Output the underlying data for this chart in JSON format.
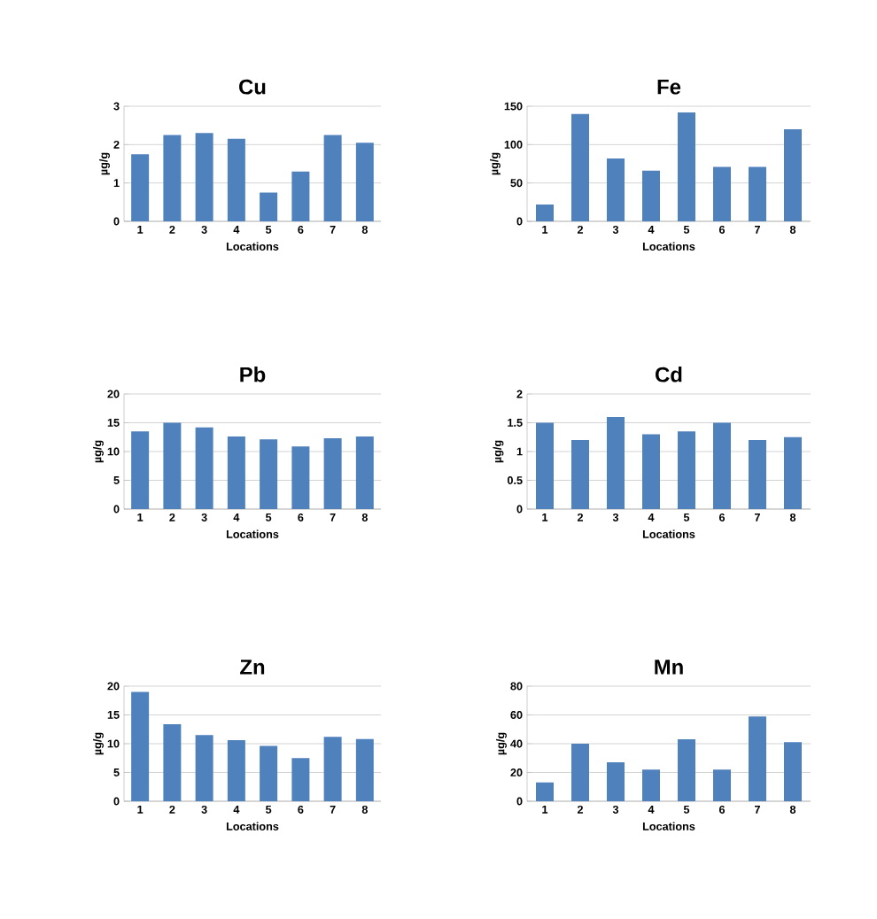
{
  "chart_data": [
    {
      "type": "bar",
      "title": "Cu",
      "xlabel": "Locations",
      "ylabel": "µg/g",
      "categories": [
        "1",
        "2",
        "3",
        "4",
        "5",
        "6",
        "7",
        "8"
      ],
      "values": [
        1.75,
        2.25,
        2.3,
        2.15,
        0.75,
        1.3,
        2.25,
        2.05
      ],
      "color": "#4f81bd",
      "ylim": [
        0,
        3
      ],
      "yticks": [
        0,
        1,
        2,
        3
      ],
      "grid": "y"
    },
    {
      "type": "bar",
      "title": "Fe",
      "xlabel": "Locations",
      "ylabel": "µg/g",
      "categories": [
        "1",
        "2",
        "3",
        "4",
        "5",
        "6",
        "7",
        "8"
      ],
      "values": [
        22,
        140,
        82,
        66,
        142,
        71,
        71,
        120
      ],
      "color": "#4f81bd",
      "ylim": [
        0,
        150
      ],
      "yticks": [
        0,
        50,
        100,
        150
      ],
      "grid": "y"
    },
    {
      "type": "bar",
      "title": "Pb",
      "xlabel": "Locations",
      "ylabel": "µg/g",
      "categories": [
        "1",
        "2",
        "3",
        "4",
        "5",
        "6",
        "7",
        "8"
      ],
      "values": [
        13.5,
        15,
        14.2,
        12.6,
        12.1,
        10.9,
        12.3,
        12.6
      ],
      "color": "#4f81bd",
      "ylim": [
        0,
        20
      ],
      "yticks": [
        0,
        5,
        10,
        15,
        20
      ],
      "grid": "y"
    },
    {
      "type": "bar",
      "title": "Cd",
      "xlabel": "Locations",
      "ylabel": "µg/g",
      "categories": [
        "1",
        "2",
        "3",
        "4",
        "5",
        "6",
        "7",
        "8"
      ],
      "values": [
        1.5,
        1.2,
        1.6,
        1.3,
        1.35,
        1.5,
        1.2,
        1.25
      ],
      "color": "#4f81bd",
      "ylim": [
        0,
        2
      ],
      "yticks": [
        0,
        0.5,
        1,
        1.5,
        2
      ],
      "grid": "y"
    },
    {
      "type": "bar",
      "title": "Zn",
      "xlabel": "Locations",
      "ylabel": "µg/g",
      "categories": [
        "1",
        "2",
        "3",
        "4",
        "5",
        "6",
        "7",
        "8"
      ],
      "values": [
        19,
        13.4,
        11.5,
        10.6,
        9.6,
        7.5,
        11.2,
        10.8
      ],
      "color": "#4f81bd",
      "ylim": [
        0,
        20
      ],
      "yticks": [
        0,
        5,
        10,
        15,
        20
      ],
      "grid": "y"
    },
    {
      "type": "bar",
      "title": "Mn",
      "xlabel": "Locations",
      "ylabel": "µg/g",
      "categories": [
        "1",
        "2",
        "3",
        "4",
        "5",
        "6",
        "7",
        "8"
      ],
      "values": [
        13,
        40,
        27,
        22,
        43,
        22,
        59,
        41
      ],
      "color": "#4f81bd",
      "ylim": [
        0,
        80
      ],
      "yticks": [
        0,
        20,
        40,
        60,
        80
      ],
      "grid": "y"
    }
  ]
}
